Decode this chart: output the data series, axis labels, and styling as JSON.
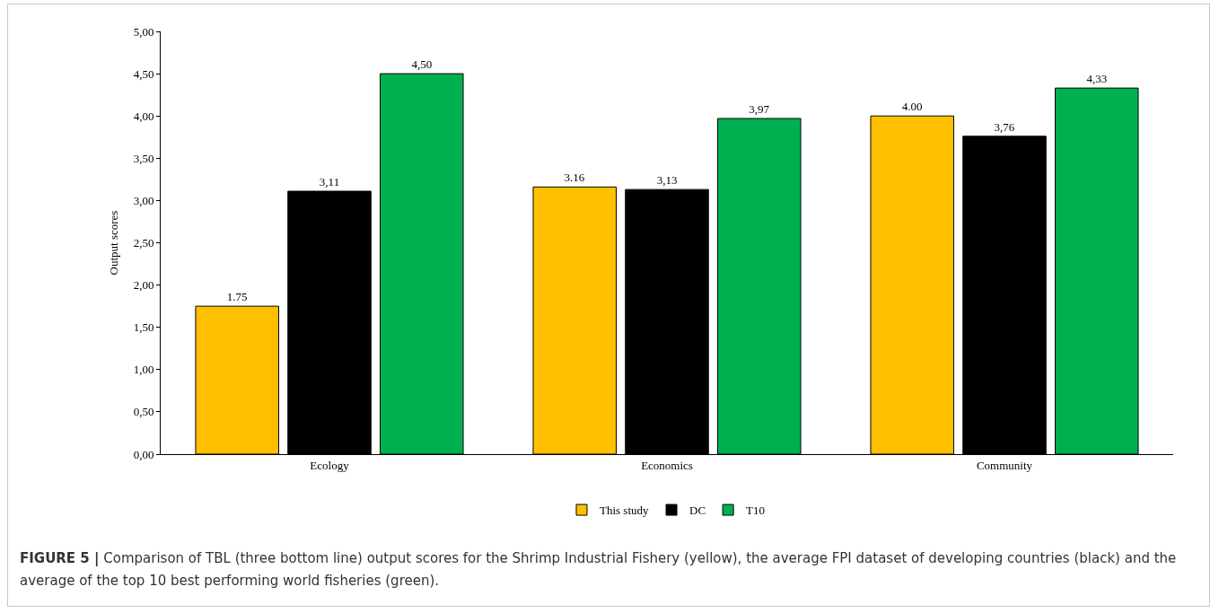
{
  "chart_data": {
    "type": "bar",
    "ylabel": "Output scores",
    "categories": [
      "Ecology",
      "Economics",
      "Community"
    ],
    "series": [
      {
        "name": "This study",
        "color": "#ffc000",
        "values": [
          1.75,
          3.16,
          4.0
        ],
        "value_labels": [
          "1.75",
          "3.16",
          "4.00"
        ]
      },
      {
        "name": "DC",
        "color": "#000000",
        "values": [
          3.11,
          3.13,
          3.76
        ],
        "value_labels": [
          "3,11",
          "3,13",
          "3,76"
        ]
      },
      {
        "name": "T10",
        "color": "#00b050",
        "values": [
          4.5,
          3.97,
          4.33
        ],
        "value_labels": [
          "4,50",
          "3,97",
          "4,33"
        ]
      }
    ],
    "ylim": [
      0,
      5
    ],
    "yticks": [
      {
        "value": 0,
        "label": "0,00"
      },
      {
        "value": 0.5,
        "label": "0,50"
      },
      {
        "value": 1,
        "label": "1,00"
      },
      {
        "value": 1.5,
        "label": "1,50"
      },
      {
        "value": 2,
        "label": "2,00"
      },
      {
        "value": 2.5,
        "label": "2,50"
      },
      {
        "value": 3,
        "label": "3,00"
      },
      {
        "value": 3.5,
        "label": "3,50"
      },
      {
        "value": 4,
        "label": "4,00"
      },
      {
        "value": 4.5,
        "label": "4,50"
      },
      {
        "value": 5,
        "label": "5,00"
      }
    ],
    "grid": false,
    "legend": "bottom",
    "annotations": [
      "FIGURE 5 | Comparison of TBL (three bottom line) output scores for the Shrimp Industrial Fishery (yellow), the average FPI dataset of developing countries (black) and the average of the top 10 best performing world fisheries (green)."
    ]
  }
}
